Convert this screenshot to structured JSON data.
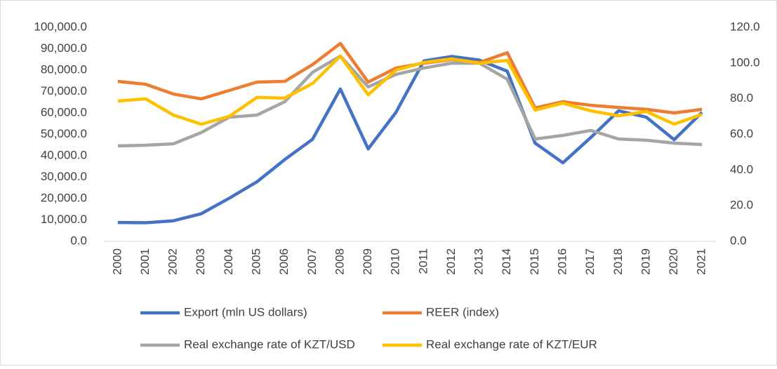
{
  "chart_data": {
    "type": "line",
    "categories": [
      "2000",
      "2001",
      "2002",
      "2003",
      "2004",
      "2005",
      "2006",
      "2007",
      "2008",
      "2009",
      "2010",
      "2011",
      "2012",
      "2013",
      "2014",
      "2015",
      "2016",
      "2017",
      "2018",
      "2019",
      "2020",
      "2021"
    ],
    "series": [
      {
        "name": "Export (mln US dollars)",
        "color": "#4472c4",
        "axis": "y",
        "values": [
          8800,
          8700,
          9600,
          12900,
          20100,
          27800,
          38200,
          47700,
          71200,
          43200,
          60300,
          84300,
          86400,
          84700,
          79500,
          45900,
          36700,
          48500,
          61000,
          58000,
          47500,
          60300
        ]
      },
      {
        "name": "REER (index)",
        "color": "#ed7d31",
        "axis": "y2",
        "values": [
          89.7,
          88.1,
          82.6,
          79.9,
          84.6,
          89.3,
          89.7,
          99.1,
          111,
          89.3,
          97.2,
          99.9,
          101.9,
          100.3,
          105.8,
          74.8,
          78.3,
          76.3,
          75.1,
          74,
          72,
          74
        ]
      },
      {
        "name": "Real exchange rate of KZT/USD",
        "color": "#a5a5a5",
        "axis": "y2",
        "values": [
          53.5,
          53.9,
          54.7,
          61,
          69.6,
          70.8,
          78.3,
          94.8,
          103.9,
          86.6,
          93.6,
          97.2,
          99.9,
          99.9,
          90.9,
          57.4,
          59.4,
          62.2,
          57.4,
          56.7,
          55.1,
          54.3
        ]
      },
      {
        "name": "Real exchange rate of KZT/EUR",
        "color": "#ffc000",
        "axis": "y2",
        "values": [
          78.7,
          79.9,
          70.8,
          65.7,
          70,
          80.7,
          80.3,
          88.5,
          103.9,
          82.2,
          96,
          100.3,
          102.3,
          99.9,
          101.5,
          73.6,
          77.5,
          73.2,
          70.4,
          72.8,
          65.7,
          71.2
        ]
      }
    ],
    "ylim": [
      0,
      100000
    ],
    "yticks": [
      {
        "value": 0,
        "label": "0.0"
      },
      {
        "value": 10000,
        "label": "10,000.0"
      },
      {
        "value": 20000,
        "label": "20,000.0"
      },
      {
        "value": 30000,
        "label": "30,000.0"
      },
      {
        "value": 40000,
        "label": "40,000.0"
      },
      {
        "value": 50000,
        "label": "50,000.0"
      },
      {
        "value": 60000,
        "label": "60,000.0"
      },
      {
        "value": 70000,
        "label": "70,000.0"
      },
      {
        "value": 80000,
        "label": "80,000.0"
      },
      {
        "value": 90000,
        "label": "90,000.0"
      },
      {
        "value": 100000,
        "label": "100,000.0"
      }
    ],
    "y2lim": [
      0,
      120
    ],
    "y2ticks": [
      {
        "value": 0,
        "label": "0.0"
      },
      {
        "value": 20,
        "label": "20.0"
      },
      {
        "value": 40,
        "label": "40.0"
      },
      {
        "value": 60,
        "label": "60.0"
      },
      {
        "value": 80,
        "label": "80.0"
      },
      {
        "value": 100,
        "label": "100.0"
      },
      {
        "value": 120,
        "label": "120.0"
      }
    ],
    "grid": false,
    "legend": "bottom"
  }
}
